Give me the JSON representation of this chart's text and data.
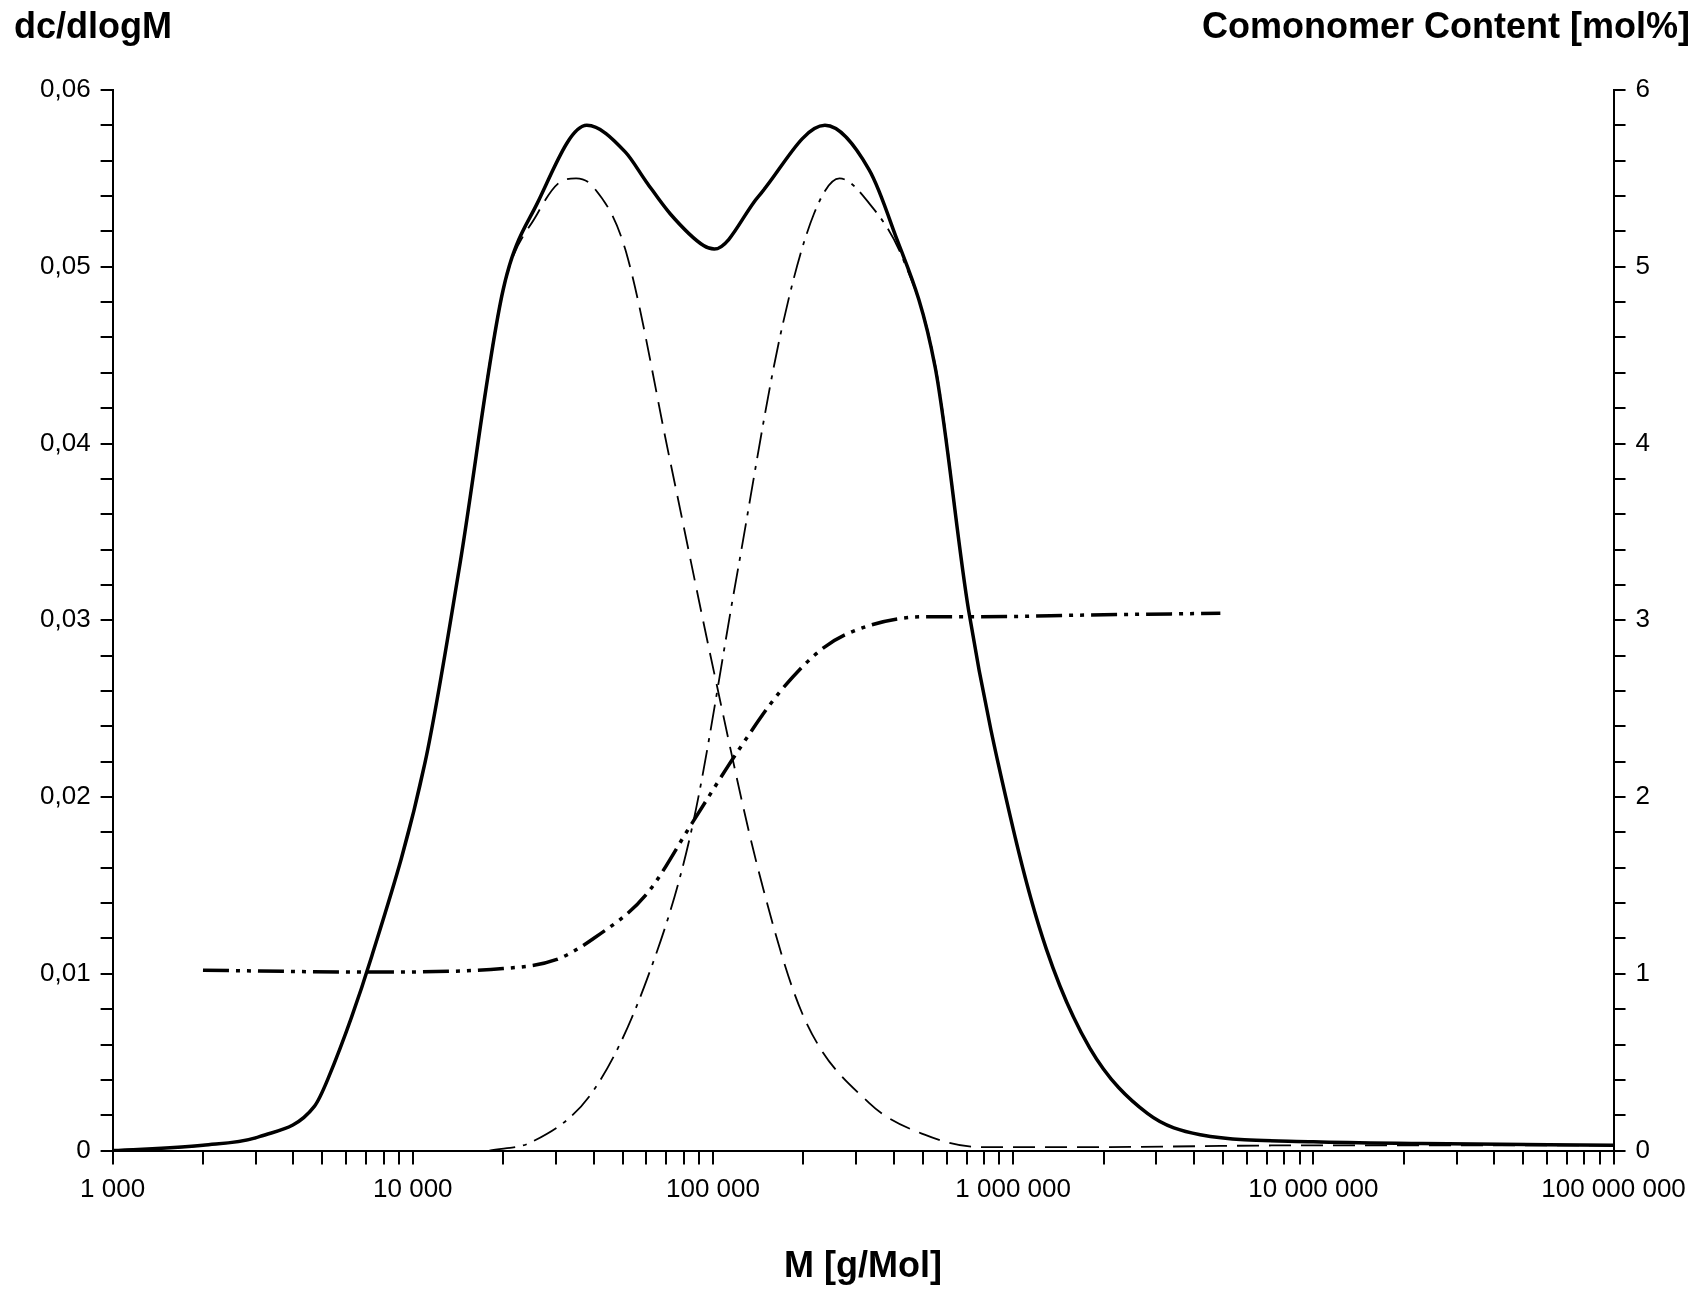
{
  "chart_data": {
    "type": "line",
    "xlabel": "M [g/Mol]",
    "ylabel": "dc/dlogM",
    "y2label": "Comonomer Content [mol%]",
    "log": "x",
    "grid": false,
    "legend": false,
    "marker": "none",
    "xlim": [
      1000,
      100000000
    ],
    "xticks": [
      {
        "value": 1000,
        "label": "1 000"
      },
      {
        "value": 2000,
        "label": null
      },
      {
        "value": 3000,
        "label": null
      },
      {
        "value": 4000,
        "label": null
      },
      {
        "value": 5000,
        "label": null
      },
      {
        "value": 6000,
        "label": null
      },
      {
        "value": 7000,
        "label": null
      },
      {
        "value": 8000,
        "label": null
      },
      {
        "value": 9000,
        "label": null
      },
      {
        "value": 10000,
        "label": "10 000"
      },
      {
        "value": 20000,
        "label": null
      },
      {
        "value": 30000,
        "label": null
      },
      {
        "value": 40000,
        "label": null
      },
      {
        "value": 50000,
        "label": null
      },
      {
        "value": 60000,
        "label": null
      },
      {
        "value": 70000,
        "label": null
      },
      {
        "value": 80000,
        "label": null
      },
      {
        "value": 90000,
        "label": null
      },
      {
        "value": 100000,
        "label": "100 000"
      },
      {
        "value": 200000,
        "label": null
      },
      {
        "value": 300000,
        "label": null
      },
      {
        "value": 400000,
        "label": null
      },
      {
        "value": 500000,
        "label": null
      },
      {
        "value": 600000,
        "label": null
      },
      {
        "value": 700000,
        "label": null
      },
      {
        "value": 800000,
        "label": null
      },
      {
        "value": 900000,
        "label": null
      },
      {
        "value": 1000000,
        "label": "1 000 000"
      },
      {
        "value": 2000000,
        "label": null
      },
      {
        "value": 3000000,
        "label": null
      },
      {
        "value": 4000000,
        "label": null
      },
      {
        "value": 5000000,
        "label": null
      },
      {
        "value": 6000000,
        "label": null
      },
      {
        "value": 7000000,
        "label": null
      },
      {
        "value": 8000000,
        "label": null
      },
      {
        "value": 9000000,
        "label": null
      },
      {
        "value": 10000000,
        "label": "10 000 000"
      },
      {
        "value": 20000000,
        "label": null
      },
      {
        "value": 30000000,
        "label": null
      },
      {
        "value": 40000000,
        "label": null
      },
      {
        "value": 50000000,
        "label": null
      },
      {
        "value": 60000000,
        "label": null
      },
      {
        "value": 70000000,
        "label": null
      },
      {
        "value": 80000000,
        "label": null
      },
      {
        "value": 90000000,
        "label": null
      },
      {
        "value": 100000000,
        "label": "100 000 000"
      }
    ],
    "ylim": [
      0,
      0.06
    ],
    "yticks": [
      0,
      {
        "value": 0.002,
        "label": null
      },
      {
        "value": 0.004,
        "label": null
      },
      {
        "value": 0.006,
        "label": null
      },
      {
        "value": 0.008,
        "label": null
      },
      {
        "value": 0.01,
        "label": "0,01"
      },
      {
        "value": 0.012,
        "label": null
      },
      {
        "value": 0.014,
        "label": null
      },
      {
        "value": 0.016,
        "label": null
      },
      {
        "value": 0.018,
        "label": null
      },
      {
        "value": 0.02,
        "label": "0,02"
      },
      {
        "value": 0.022,
        "label": null
      },
      {
        "value": 0.024,
        "label": null
      },
      {
        "value": 0.026,
        "label": null
      },
      {
        "value": 0.028,
        "label": null
      },
      {
        "value": 0.03,
        "label": "0,03"
      },
      {
        "value": 0.032,
        "label": null
      },
      {
        "value": 0.034,
        "label": null
      },
      {
        "value": 0.036,
        "label": null
      },
      {
        "value": 0.038,
        "label": null
      },
      {
        "value": 0.04,
        "label": "0,04"
      },
      {
        "value": 0.042,
        "label": null
      },
      {
        "value": 0.044,
        "label": null
      },
      {
        "value": 0.046,
        "label": null
      },
      {
        "value": 0.048,
        "label": null
      },
      {
        "value": 0.05,
        "label": "0,05"
      },
      {
        "value": 0.052,
        "label": null
      },
      {
        "value": 0.054,
        "label": null
      },
      {
        "value": 0.056,
        "label": null
      },
      {
        "value": 0.058,
        "label": null
      },
      {
        "value": 0.06,
        "label": "0,06"
      }
    ],
    "y2lim": [
      0,
      6
    ],
    "y2ticks": [
      0,
      {
        "value": 0.2,
        "label": null
      },
      {
        "value": 0.4,
        "label": null
      },
      {
        "value": 0.6,
        "label": null
      },
      {
        "value": 0.8,
        "label": null
      },
      1,
      {
        "value": 1.2,
        "label": null
      },
      {
        "value": 1.4,
        "label": null
      },
      {
        "value": 1.6,
        "label": null
      },
      {
        "value": 1.8,
        "label": null
      },
      2,
      {
        "value": 2.2,
        "label": null
      },
      {
        "value": 2.4,
        "label": null
      },
      {
        "value": 2.6,
        "label": null
      },
      {
        "value": 2.8,
        "label": null
      },
      3,
      {
        "value": 3.2,
        "label": null
      },
      {
        "value": 3.4,
        "label": null
      },
      {
        "value": 3.6,
        "label": null
      },
      {
        "value": 3.8,
        "label": null
      },
      4,
      {
        "value": 4.2,
        "label": null
      },
      {
        "value": 4.4,
        "label": null
      },
      {
        "value": 4.6,
        "label": null
      },
      {
        "value": 4.8,
        "label": null
      },
      5,
      {
        "value": 5.2,
        "label": null
      },
      {
        "value": 5.4,
        "label": null
      },
      {
        "value": 5.6,
        "label": null
      },
      {
        "value": 5.8,
        "label": null
      },
      6
    ],
    "series": [
      {
        "color": "#000000",
        "line_style": "solid",
        "x": [
          1000,
          2000,
          3100,
          4700,
          5200,
          7300,
          11000,
          14300,
          20000,
          26000,
          38000,
          51000,
          60000,
          72000,
          93000,
          101000,
          142000,
          236000,
          331000,
          393000,
          550000,
          710000,
          1000000,
          1290000,
          1800000,
          2800000,
          4200000,
          10000000,
          23000000,
          100000000
        ],
        "values": [
          0,
          0.0003,
          0.0008,
          0.0025,
          0.004,
          0.011,
          0.022,
          0.033,
          0.0487,
          0.0536,
          0.058,
          0.0565,
          0.0548,
          0.053,
          0.0512,
          0.051,
          0.054,
          0.058,
          0.0555,
          0.0524,
          0.0443,
          0.0306,
          0.0182,
          0.0114,
          0.0058,
          0.0021,
          0.0009,
          0.0005,
          0.0004,
          0.0003
        ]
      },
      {
        "color": "#000000",
        "line_style": "dashed",
        "x": [
          1000,
          2000,
          3100,
          4700,
          5200,
          7300,
          11000,
          14300,
          20000,
          26000,
          31000,
          35000,
          40000,
          51000,
          72000,
          101000,
          142000,
          199000,
          331000,
          507000,
          774000,
          1800000,
          10000000,
          100000000
        ],
        "values": [
          0,
          0.0003,
          0.0008,
          0.0025,
          0.004,
          0.011,
          0.022,
          0.033,
          0.0487,
          0.053,
          0.0548,
          0.055,
          0.0545,
          0.051,
          0.039,
          0.027,
          0.0158,
          0.0077,
          0.0027,
          0.0009,
          0.0002,
          0.0002,
          0.0003,
          0.0003
        ]
      },
      {
        "color": "#000000",
        "line_style": "dashdot",
        "x": [
          18000,
          25000,
          40000,
          60000,
          85000,
          120000,
          168000,
          217000,
          264000,
          331000,
          428000,
          552000,
          710000,
          1000000,
          1290000,
          1800000,
          2800000,
          4200000,
          10000000,
          23000000,
          100000000
        ],
        "values": [
          0,
          0.0005,
          0.0034,
          0.0096,
          0.0182,
          0.0325,
          0.0462,
          0.053,
          0.055,
          0.0536,
          0.0505,
          0.0443,
          0.0306,
          0.0182,
          0.0114,
          0.0058,
          0.0021,
          0.0009,
          0.0005,
          0.0004,
          0.0003
        ]
      },
      {
        "color": "#000000",
        "line_style": "dashdotdot",
        "axis": "y2",
        "x": [
          2000,
          7300,
          20000,
          30000,
          40000,
          60000,
          85000,
          120000,
          168000,
          236000,
          331000,
          507000,
          774000,
          1800000,
          4900000
        ],
        "values": [
          1.02,
          1.01,
          1.03,
          1.08,
          1.2,
          1.45,
          1.85,
          2.25,
          2.6,
          2.85,
          2.97,
          3.02,
          3.02,
          3.03,
          3.04
        ]
      }
    ]
  }
}
